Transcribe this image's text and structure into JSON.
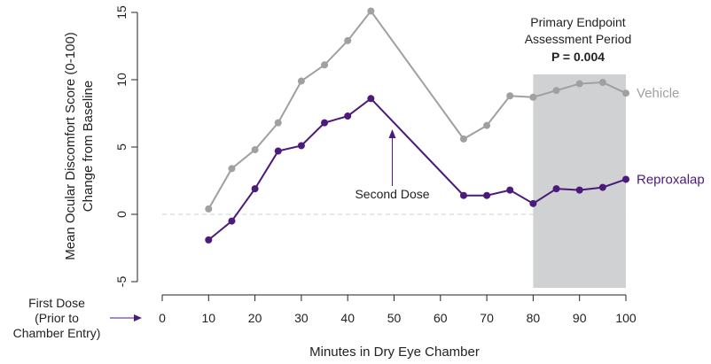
{
  "chart_data": {
    "type": "line",
    "xlabel": "Minutes in Dry Eye Chamber",
    "ylabel": [
      "Mean Ocular Discomfort Score (0-100)",
      "Change from Baseline"
    ],
    "xlim": [
      0,
      100
    ],
    "ylim": [
      -5,
      15
    ],
    "xticks": [
      0,
      10,
      20,
      30,
      40,
      50,
      60,
      70,
      80,
      90,
      100
    ],
    "yticks": [
      -5,
      0,
      5,
      10,
      15
    ],
    "baseline": 0,
    "shaded_region": {
      "x": [
        80,
        100
      ],
      "label_lines": [
        "Primary Endpoint",
        "Assessment Period"
      ],
      "pvalue": "P = 0.004",
      "color": "#d0d1d3"
    },
    "first_dose": {
      "lines": [
        "First Dose",
        "(Prior to",
        "Chamber Entry)"
      ],
      "x": 0
    },
    "second_dose": {
      "label": "Second Dose",
      "x": 50
    },
    "series": [
      {
        "name": "Vehicle",
        "color": "#a0a0a0",
        "x": [
          10,
          15,
          20,
          25,
          30,
          35,
          40,
          45,
          65,
          70,
          75,
          80,
          85,
          90,
          95,
          100
        ],
        "y": [
          0.4,
          3.4,
          4.8,
          6.8,
          9.9,
          11.1,
          12.9,
          15.1,
          5.6,
          6.6,
          8.8,
          8.7,
          9.2,
          9.7,
          9.8,
          9.0
        ]
      },
      {
        "name": "Reproxalap",
        "color": "#4b1a7a",
        "x": [
          10,
          15,
          20,
          25,
          30,
          35,
          40,
          45,
          65,
          70,
          75,
          80,
          85,
          90,
          95,
          100
        ],
        "y": [
          -1.9,
          -0.5,
          1.9,
          4.7,
          5.1,
          6.8,
          7.3,
          8.6,
          1.4,
          1.4,
          1.8,
          0.8,
          1.9,
          1.8,
          2.0,
          2.6
        ]
      }
    ]
  }
}
